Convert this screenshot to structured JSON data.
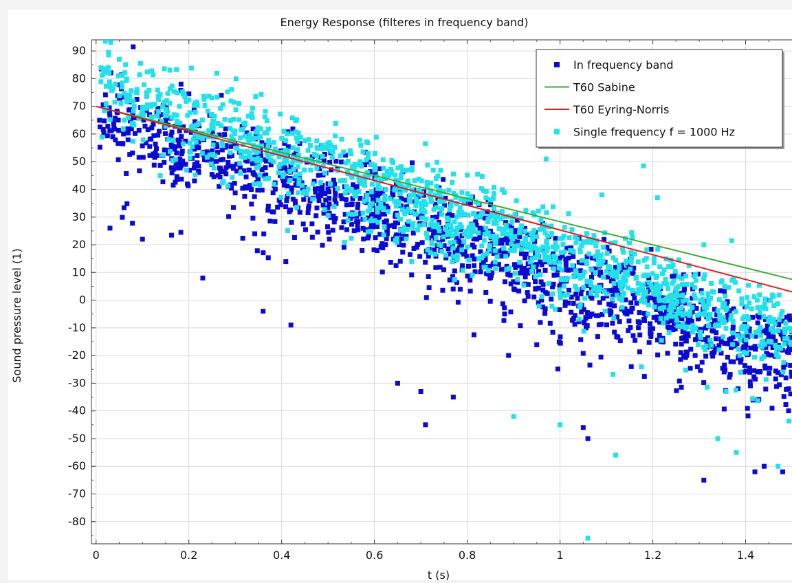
{
  "chart_data": {
    "type": "scatter",
    "title": "Energy Response (filteres in frequency band)",
    "xlabel": "t (s)",
    "ylabel": "Sound pressure level (1)",
    "xlim": [
      -0.01,
      1.5
    ],
    "ylim": [
      -88,
      94
    ],
    "x_ticks": [
      0,
      0.2,
      0.4,
      0.6,
      0.8,
      1,
      1.2,
      1.4
    ],
    "x_tick_labels": [
      "0",
      "0.2",
      "0.4",
      "0.6",
      "0.8",
      "1",
      "1.2",
      "1.4"
    ],
    "y_ticks": [
      90,
      80,
      70,
      60,
      50,
      40,
      30,
      20,
      10,
      0,
      -10,
      -20,
      -30,
      -40,
      -50,
      -60,
      -70,
      -80
    ],
    "y_tick_labels": [
      "90",
      "80",
      "70",
      "60",
      "50",
      "40",
      "30",
      "20",
      "10",
      "0",
      "-10",
      "-20",
      "-30",
      "-40",
      "-50",
      "-60",
      "-70",
      "-80"
    ],
    "grid": true,
    "legend_position": "top-right",
    "series": [
      {
        "name": "In frequency band",
        "type": "scatter",
        "color": "#0a0ad2",
        "trend": {
          "start": [
            0.005,
            66
          ],
          "end": [
            1.5,
            -21
          ]
        },
        "spread": 11,
        "count": 1450,
        "sample_points": [
          [
            0.08,
            91.5
          ],
          [
            0.2,
            74.5
          ],
          [
            0.27,
            74
          ],
          [
            0.03,
            26
          ],
          [
            0.1,
            22
          ],
          [
            0.23,
            8
          ],
          [
            0.36,
            -4
          ],
          [
            0.42,
            -9
          ],
          [
            0.65,
            -30
          ],
          [
            0.7,
            -33
          ],
          [
            0.71,
            -45
          ],
          [
            0.77,
            -35
          ],
          [
            1.05,
            -46
          ],
          [
            1.06,
            -50
          ],
          [
            1.31,
            -65
          ],
          [
            1.42,
            -62
          ],
          [
            1.44,
            -60
          ],
          [
            1.48,
            -62
          ]
        ]
      },
      {
        "name": "T60 Sabine",
        "type": "line",
        "color": "#3aaa35",
        "x": [
          0.0,
          1.5
        ],
        "y": [
          70,
          7.5
        ]
      },
      {
        "name": "T60 Eyring-Norris",
        "type": "line",
        "color": "#e41a1c",
        "x": [
          0.0,
          1.5
        ],
        "y": [
          70,
          3
        ]
      },
      {
        "name": "Single frequency f = 1000 Hz",
        "type": "scatter",
        "color": "#22e1ea",
        "trend": {
          "start": [
            0.01,
            78
          ],
          "end": [
            1.5,
            -14
          ]
        },
        "spread": 10,
        "count": 1350,
        "sample_points": [
          [
            0.02,
            93.5
          ],
          [
            0.05,
            87
          ],
          [
            0.71,
            56.5
          ],
          [
            0.97,
            51
          ],
          [
            1.18,
            48.5
          ],
          [
            1.09,
            38
          ],
          [
            1.21,
            37
          ],
          [
            1.37,
            21.5
          ],
          [
            1.31,
            20
          ],
          [
            1.06,
            -86
          ],
          [
            0.9,
            -42
          ],
          [
            1.0,
            -45
          ],
          [
            1.12,
            -56
          ],
          [
            1.34,
            -50
          ],
          [
            1.38,
            -55
          ],
          [
            1.47,
            -60
          ]
        ]
      }
    ]
  }
}
